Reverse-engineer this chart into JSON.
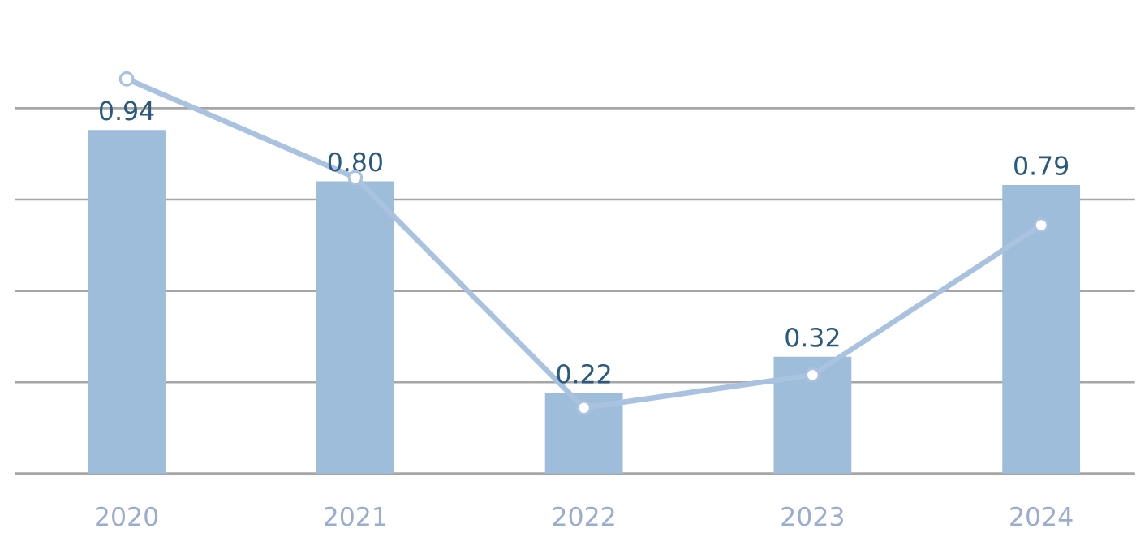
{
  "chart_data": {
    "type": "bar",
    "categories": [
      "2020",
      "2021",
      "2022",
      "2023",
      "2024"
    ],
    "series": [
      {
        "type": "bar",
        "color": "#9dbddb",
        "values": [
          0.94,
          0.8,
          0.22,
          0.32,
          0.79
        ],
        "value_labels": [
          "0.94",
          "0.80",
          "0.22",
          "0.32",
          "0.79"
        ]
      },
      {
        "type": "line",
        "color": "#a9c2e0",
        "values": [
          1.08,
          0.81,
          0.18,
          0.27,
          0.68
        ]
      }
    ],
    "yticks": [
      {
        "value": 0,
        "label": null
      },
      {
        "value": 0.25,
        "label": null
      },
      {
        "value": 0.5,
        "label": null
      },
      {
        "value": 0.75,
        "label": null
      },
      {
        "value": 1.0,
        "label": null
      }
    ],
    "tick_labels": "x",
    "grid": "y",
    "marker": "circle",
    "line_style": "solid"
  }
}
